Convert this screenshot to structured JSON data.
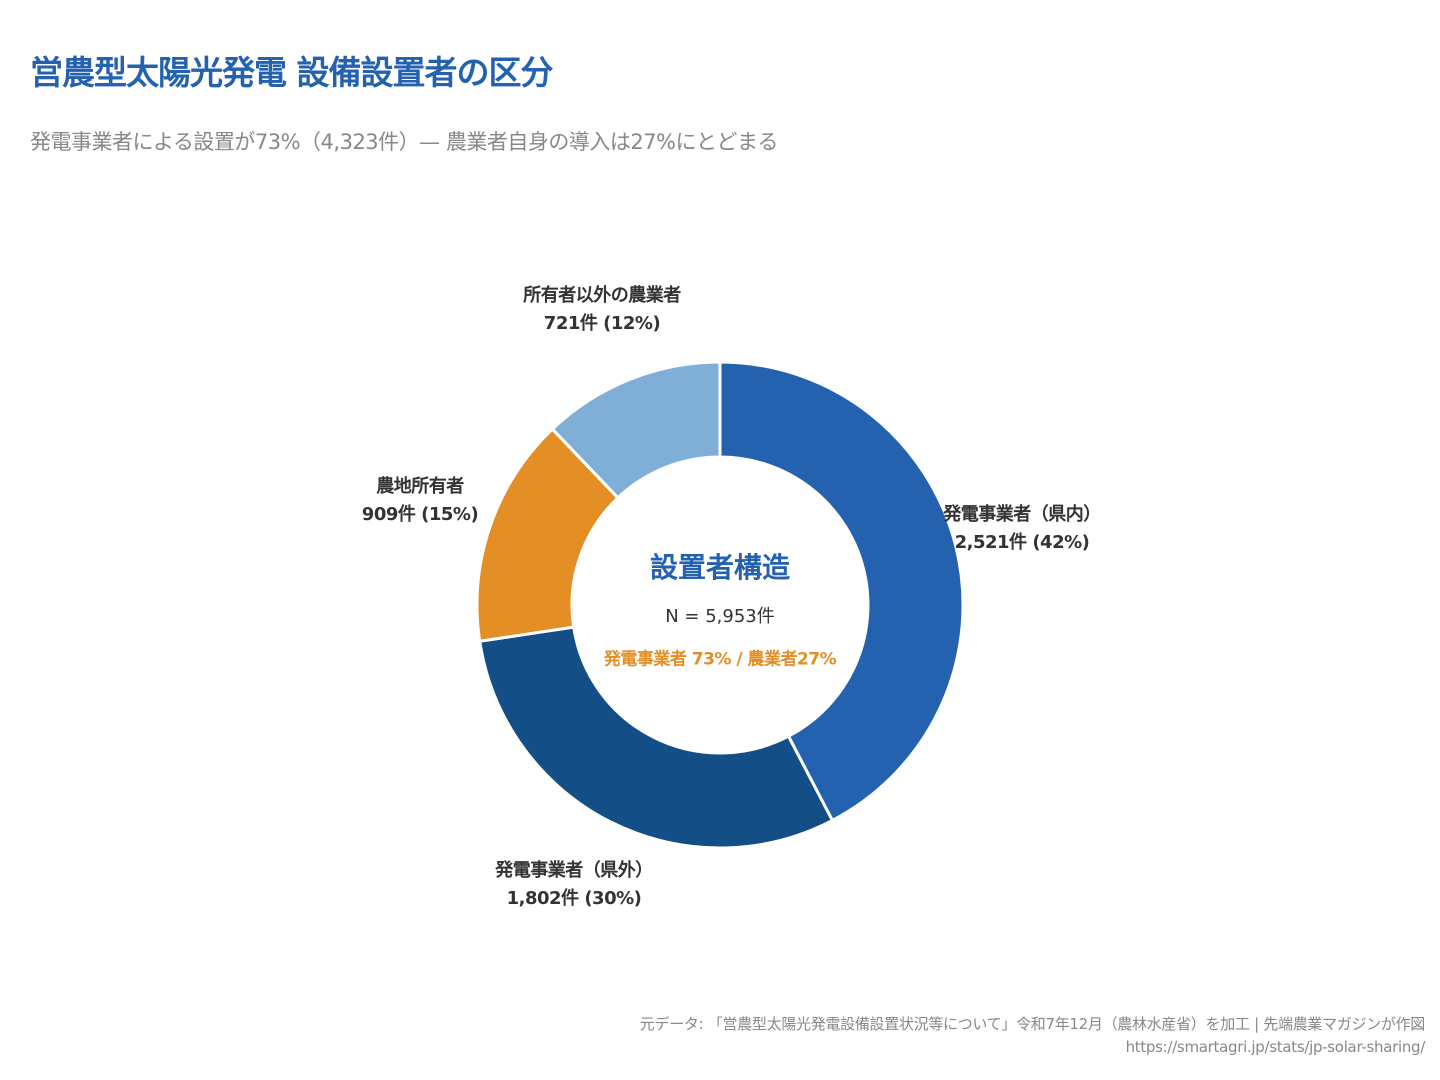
{
  "chart_data": {
    "type": "donut",
    "title": "営農型太陽光発電 設備設置者の区分",
    "subtitle": "発電事業者による設置が73%（4,323件）— 農業者自身の導入は27%にとどまる",
    "slices": [
      {
        "name": "発電事業者（県内）",
        "value": 2521,
        "value_label": "2,521件 (42%)",
        "percent": 42,
        "color": "#2462B0"
      },
      {
        "name": "発電事業者（県外）",
        "value": 1802,
        "value_label": "1,802件 (30%)",
        "percent": 30,
        "color": "#134E87"
      },
      {
        "name": "農地所有者",
        "value": 909,
        "value_label": "909件 (15%)",
        "percent": 15,
        "color": "#E38F26"
      },
      {
        "name": "所有者以外の農業者",
        "value": 721,
        "value_label": "721件 (12%)",
        "percent": 12,
        "color": "#7FAED6"
      }
    ],
    "center": {
      "title": "設置者構造",
      "total": "N = 5,953件",
      "split": "発電事業者 73% / 農業者27%"
    }
  },
  "footer": {
    "source": "元データ: 「営農型太陽光発電設備設置状況等について」令和7年12月（農林水産省）を加工 | 先端農業マガジンが作図",
    "url": "https://smartagri.jp/stats/jp-solar-sharing/"
  }
}
